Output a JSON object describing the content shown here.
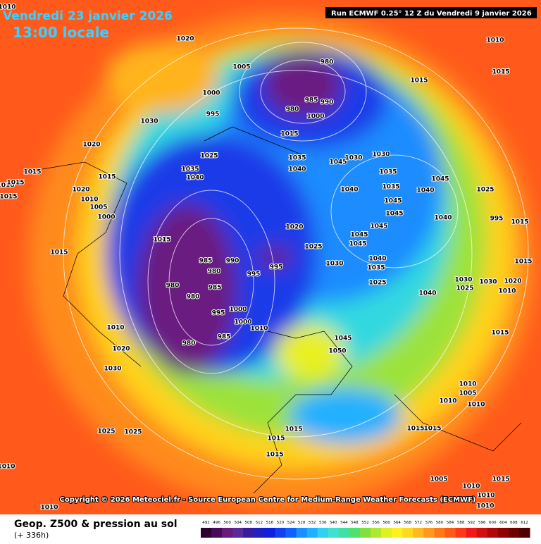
{
  "header": {
    "date": "Vendredi 23 janvier 2026",
    "local_time": "13:00 locale",
    "run": "Run ECMWF 0.25° 12 Z du Vendredi 9 janvier 2026"
  },
  "map": {
    "pressure_labels": [
      "1020",
      "1005",
      "980",
      "1000",
      "985",
      "990",
      "980",
      "1000",
      "995",
      "1030",
      "1015",
      "1020",
      "1025",
      "1035",
      "1045",
      "1030",
      "1030",
      "1040",
      "1035",
      "1040",
      "1035",
      "1045",
      "1025",
      "1015",
      "1015",
      "1010",
      "1015",
      "1015",
      "1020",
      "1010",
      "1005",
      "1000",
      "1040",
      "1035",
      "1045",
      "1040",
      "1045",
      "1045",
      "1040",
      "995",
      "1015",
      "1020",
      "1015",
      "1045",
      "1045",
      "1025",
      "1015",
      "985",
      "980",
      "990",
      "995",
      "995",
      "1030",
      "1040",
      "1035",
      "1025",
      "985",
      "980",
      "980",
      "1000",
      "995",
      "1000",
      "1010",
      "1040",
      "1030",
      "1025",
      "1030",
      "1020",
      "1010",
      "1015",
      "1045",
      "1050",
      "1010",
      "1020",
      "1030",
      "980",
      "985",
      "1015",
      "1010",
      "1005",
      "1010",
      "1010",
      "1015",
      "1015",
      "1015",
      "1015",
      "1015",
      "1025",
      "1025",
      "1010",
      "1010",
      "1005",
      "1010",
      "1015",
      "1010",
      "1010",
      "1010",
      "1015",
      "1015",
      "1010"
    ],
    "copyright": "Copyright © 2026 Meteociel.fr - Source European Centre for Medium-Range Weather Forecasts (ECMWF)"
  },
  "legend": {
    "title": "Geop. Z500 & pression au sol",
    "lead": "(+ 336h)",
    "ticks": [
      "492",
      "496",
      "500",
      "504",
      "508",
      "512",
      "516",
      "520",
      "524",
      "528",
      "532",
      "536",
      "540",
      "544",
      "548",
      "552",
      "556",
      "560",
      "564",
      "568",
      "572",
      "576",
      "580",
      "584",
      "588",
      "592",
      "596",
      "600",
      "604",
      "608",
      "612"
    ],
    "colors": [
      "#2a0030",
      "#4a0a5a",
      "#6a1a7a",
      "#5a2a9a",
      "#3a1aa0",
      "#2020c0",
      "#1020e0",
      "#1040f0",
      "#1060ff",
      "#1890ff",
      "#20b0ff",
      "#30d0f0",
      "#40e0d0",
      "#40e0a0",
      "#50e070",
      "#80e040",
      "#b0e830",
      "#e0f020",
      "#fff020",
      "#ffd820",
      "#ffb820",
      "#ff9820",
      "#ff7818",
      "#ff5818",
      "#ff3818",
      "#f01818",
      "#d01010",
      "#b00808",
      "#900000",
      "#700000",
      "#500000"
    ]
  }
}
